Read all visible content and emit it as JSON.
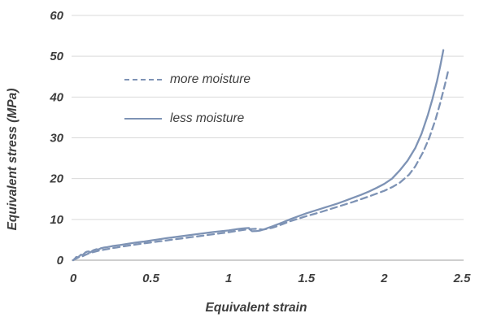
{
  "colors": {
    "line": "#7e93b5",
    "grid": "#d9d9d9",
    "axis_line": "#bfbfbf",
    "text": "#3d3d3d",
    "background": "#ffffff"
  },
  "axes": {
    "x_title": "Equivalent strain",
    "y_title": "Equivalent stress (MPa)"
  },
  "legend": {
    "items": [
      {
        "label": "more moisture",
        "style": "dashed"
      },
      {
        "label": "less moisture",
        "style": "solid"
      }
    ]
  },
  "chart_data": {
    "type": "line",
    "title": "",
    "xlabel": "Equivalent strain",
    "ylabel": "Equivalent stress (MPa)",
    "xlim": [
      0,
      2.5
    ],
    "ylim": [
      0,
      60
    ],
    "grid": "horizontal",
    "legend_position": "inside-top-left",
    "x_ticks": [
      "0",
      "0.5",
      "1",
      "1.5",
      "2",
      "2.5"
    ],
    "x_tick_values": [
      0,
      0.5,
      1,
      1.5,
      2,
      2.5
    ],
    "y_ticks": [
      "0",
      "10",
      "20",
      "30",
      "40",
      "50",
      "60"
    ],
    "y_tick_values": [
      0,
      10,
      20,
      30,
      40,
      50,
      60
    ],
    "series": [
      {
        "name": "more moisture",
        "style": "dashed",
        "color": "#7e93b5",
        "points": [
          [
            0,
            0
          ],
          [
            0.02,
            0.4
          ],
          [
            0.04,
            0.8
          ],
          [
            0.05,
            0.75
          ],
          [
            0.07,
            1.15
          ],
          [
            0.09,
            1.5
          ],
          [
            0.1,
            1.65
          ],
          [
            0.12,
            1.9
          ],
          [
            0.14,
            2.1
          ],
          [
            0.16,
            2.3
          ],
          [
            0.18,
            2.45
          ],
          [
            0.2,
            2.6
          ],
          [
            0.23,
            2.8
          ],
          [
            0.25,
            2.95
          ],
          [
            0.28,
            3.1
          ],
          [
            0.3,
            3.25
          ],
          [
            0.35,
            3.55
          ],
          [
            0.4,
            3.85
          ],
          [
            0.45,
            4.1
          ],
          [
            0.5,
            4.35
          ],
          [
            0.55,
            4.6
          ],
          [
            0.6,
            4.85
          ],
          [
            0.65,
            5.1
          ],
          [
            0.7,
            5.35
          ],
          [
            0.75,
            5.6
          ],
          [
            0.8,
            5.85
          ],
          [
            0.85,
            6.1
          ],
          [
            0.9,
            6.35
          ],
          [
            0.95,
            6.6
          ],
          [
            1.0,
            6.85
          ],
          [
            1.05,
            7.15
          ],
          [
            1.1,
            7.45
          ],
          [
            1.15,
            7.65
          ],
          [
            1.18,
            7.7
          ],
          [
            1.2,
            7.6
          ],
          [
            1.22,
            7.5
          ],
          [
            1.25,
            7.7
          ],
          [
            1.28,
            7.95
          ],
          [
            1.3,
            8.2
          ],
          [
            1.35,
            8.9
          ],
          [
            1.4,
            9.6
          ],
          [
            1.45,
            10.2
          ],
          [
            1.5,
            10.8
          ],
          [
            1.55,
            11.35
          ],
          [
            1.6,
            11.9
          ],
          [
            1.65,
            12.5
          ],
          [
            1.7,
            13.1
          ],
          [
            1.75,
            13.7
          ],
          [
            1.8,
            14.3
          ],
          [
            1.85,
            14.95
          ],
          [
            1.9,
            15.6
          ],
          [
            1.95,
            16.3
          ],
          [
            2.0,
            17.0
          ],
          [
            2.05,
            17.9
          ],
          [
            2.1,
            19.0
          ],
          [
            2.16,
            21.0
          ],
          [
            2.2,
            23.0
          ],
          [
            2.25,
            26.5
          ],
          [
            2.29,
            30.0
          ],
          [
            2.33,
            34.5
          ],
          [
            2.36,
            38.5
          ],
          [
            2.39,
            43.0
          ],
          [
            2.41,
            46.2
          ]
        ]
      },
      {
        "name": "less moisture",
        "style": "solid",
        "color": "#7e93b5",
        "points": [
          [
            0,
            0
          ],
          [
            0.01,
            0.35
          ],
          [
            0.02,
            0.8
          ],
          [
            0.03,
            0.7
          ],
          [
            0.04,
            1.0
          ],
          [
            0.05,
            1.35
          ],
          [
            0.06,
            1.25
          ],
          [
            0.08,
            1.95
          ],
          [
            0.09,
            2.1
          ],
          [
            0.1,
            2.15
          ],
          [
            0.11,
            1.9
          ],
          [
            0.12,
            2.2
          ],
          [
            0.13,
            2.45
          ],
          [
            0.15,
            2.7
          ],
          [
            0.16,
            2.6
          ],
          [
            0.18,
            2.95
          ],
          [
            0.2,
            3.1
          ],
          [
            0.22,
            3.2
          ],
          [
            0.25,
            3.45
          ],
          [
            0.28,
            3.6
          ],
          [
            0.3,
            3.7
          ],
          [
            0.35,
            4.0
          ],
          [
            0.4,
            4.3
          ],
          [
            0.45,
            4.55
          ],
          [
            0.5,
            4.85
          ],
          [
            0.55,
            5.1
          ],
          [
            0.6,
            5.4
          ],
          [
            0.65,
            5.65
          ],
          [
            0.7,
            5.9
          ],
          [
            0.75,
            6.15
          ],
          [
            0.8,
            6.4
          ],
          [
            0.85,
            6.65
          ],
          [
            0.9,
            6.9
          ],
          [
            0.95,
            7.1
          ],
          [
            1.0,
            7.3
          ],
          [
            1.05,
            7.6
          ],
          [
            1.08,
            7.75
          ],
          [
            1.11,
            7.85
          ],
          [
            1.13,
            7.9
          ],
          [
            1.14,
            7.4
          ],
          [
            1.15,
            7.1
          ],
          [
            1.18,
            7.15
          ],
          [
            1.2,
            7.25
          ],
          [
            1.23,
            7.6
          ],
          [
            1.25,
            7.9
          ],
          [
            1.28,
            8.3
          ],
          [
            1.3,
            8.6
          ],
          [
            1.35,
            9.3
          ],
          [
            1.4,
            10.1
          ],
          [
            1.45,
            10.8
          ],
          [
            1.5,
            11.5
          ],
          [
            1.55,
            12.1
          ],
          [
            1.6,
            12.7
          ],
          [
            1.65,
            13.3
          ],
          [
            1.7,
            13.9
          ],
          [
            1.75,
            14.6
          ],
          [
            1.8,
            15.3
          ],
          [
            1.85,
            16.0
          ],
          [
            1.9,
            16.8
          ],
          [
            1.95,
            17.7
          ],
          [
            2.0,
            18.7
          ],
          [
            2.05,
            20.0
          ],
          [
            2.1,
            22.0
          ],
          [
            2.15,
            24.4
          ],
          [
            2.2,
            27.5
          ],
          [
            2.24,
            31.0
          ],
          [
            2.28,
            35.5
          ],
          [
            2.31,
            39.5
          ],
          [
            2.34,
            44.0
          ],
          [
            2.36,
            47.5
          ],
          [
            2.38,
            51.5
          ]
        ]
      }
    ]
  }
}
